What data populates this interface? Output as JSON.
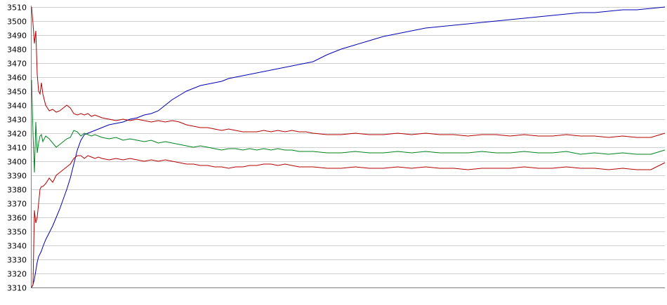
{
  "chart_data": {
    "type": "line",
    "title": "",
    "xlabel": "",
    "ylabel": "",
    "ylim": [
      3310,
      3510
    ],
    "yticks": [
      3510,
      3500,
      3490,
      3480,
      3470,
      3460,
      3450,
      3440,
      3430,
      3420,
      3410,
      3400,
      3390,
      3380,
      3370,
      3360,
      3350,
      3340,
      3330,
      3320,
      3310
    ],
    "grid": true,
    "legend": "none",
    "x": [
      0,
      2,
      4,
      6,
      8,
      10,
      12,
      14,
      16,
      20,
      25,
      30,
      35,
      40,
      45,
      50,
      55,
      60,
      65,
      70,
      75,
      80,
      85,
      90,
      95,
      100,
      110,
      120,
      130,
      140,
      150,
      160,
      170,
      180,
      190,
      200,
      210,
      220,
      230,
      240,
      250,
      260,
      270,
      280,
      290,
      300,
      310,
      320,
      330,
      340,
      350,
      360,
      370,
      380,
      390,
      400,
      420,
      440,
      460,
      480,
      500,
      520,
      540,
      560,
      580,
      600,
      620,
      640,
      660,
      680,
      700,
      720,
      740,
      760,
      780,
      800,
      820,
      840,
      860,
      880,
      900
    ],
    "series": [
      {
        "color": "#0000b4",
        "values": [
          3310,
          3312,
          3316,
          3322,
          3328,
          3332,
          3334,
          3336,
          3339,
          3344,
          3349,
          3354,
          3360,
          3366,
          3373,
          3380,
          3388,
          3398,
          3408,
          3415,
          3419,
          3420,
          3421,
          3422,
          3423,
          3424,
          3426,
          3427,
          3428,
          3430,
          3431,
          3433,
          3434,
          3436,
          3440,
          3444,
          3447,
          3450,
          3452,
          3454,
          3455,
          3456,
          3457,
          3459,
          3460,
          3461,
          3462,
          3463,
          3464,
          3465,
          3466,
          3467,
          3468,
          3469,
          3470,
          3471,
          3476,
          3480,
          3483,
          3486,
          3489,
          3491,
          3493,
          3495,
          3496,
          3497,
          3498,
          3499,
          3500,
          3501,
          3502,
          3503,
          3504,
          3505,
          3506,
          3506,
          3507,
          3508,
          3508,
          3509,
          3510
        ]
      },
      {
        "color": "#b40000",
        "values": [
          3510,
          3498,
          3484,
          3493,
          3462,
          3450,
          3448,
          3456,
          3448,
          3440,
          3436,
          3437,
          3435,
          3436,
          3438,
          3440,
          3438,
          3434,
          3433,
          3434,
          3433,
          3434,
          3432,
          3433,
          3432,
          3431,
          3430,
          3429,
          3430,
          3429,
          3430,
          3429,
          3428,
          3429,
          3428,
          3429,
          3428,
          3426,
          3425,
          3424,
          3424,
          3423,
          3422,
          3423,
          3422,
          3421,
          3421,
          3421,
          3422,
          3421,
          3422,
          3421,
          3422,
          3421,
          3421,
          3420,
          3419,
          3419,
          3420,
          3419,
          3419,
          3420,
          3419,
          3420,
          3419,
          3419,
          3418,
          3419,
          3419,
          3418,
          3419,
          3418,
          3418,
          3419,
          3418,
          3418,
          3417,
          3418,
          3417,
          3417,
          3420
        ]
      },
      {
        "color": "#00821e",
        "values": [
          3458,
          3420,
          3392,
          3428,
          3406,
          3413,
          3418,
          3419,
          3414,
          3418,
          3416,
          3413,
          3410,
          3412,
          3414,
          3416,
          3417,
          3422,
          3421,
          3418,
          3420,
          3419,
          3418,
          3419,
          3418,
          3417,
          3416,
          3417,
          3415,
          3416,
          3415,
          3414,
          3415,
          3413,
          3414,
          3413,
          3412,
          3411,
          3410,
          3411,
          3410,
          3409,
          3408,
          3409,
          3409,
          3408,
          3409,
          3408,
          3409,
          3408,
          3409,
          3408,
          3408,
          3407,
          3407,
          3407,
          3406,
          3406,
          3407,
          3406,
          3406,
          3407,
          3406,
          3407,
          3406,
          3406,
          3406,
          3407,
          3406,
          3406,
          3407,
          3406,
          3406,
          3407,
          3405,
          3406,
          3405,
          3406,
          3405,
          3405,
          3408
        ]
      },
      {
        "color": "#b40000",
        "values": [
          3310,
          3312,
          3365,
          3356,
          3360,
          3370,
          3380,
          3382,
          3382,
          3384,
          3388,
          3385,
          3390,
          3392,
          3394,
          3396,
          3398,
          3402,
          3404,
          3404,
          3402,
          3404,
          3403,
          3402,
          3403,
          3402,
          3401,
          3402,
          3401,
          3402,
          3401,
          3400,
          3401,
          3400,
          3401,
          3400,
          3399,
          3398,
          3398,
          3397,
          3397,
          3396,
          3396,
          3395,
          3396,
          3396,
          3397,
          3397,
          3398,
          3398,
          3397,
          3398,
          3397,
          3396,
          3396,
          3396,
          3395,
          3395,
          3396,
          3395,
          3395,
          3396,
          3395,
          3396,
          3395,
          3395,
          3394,
          3395,
          3395,
          3395,
          3396,
          3395,
          3395,
          3396,
          3395,
          3395,
          3394,
          3395,
          3394,
          3394,
          3399
        ]
      }
    ]
  }
}
